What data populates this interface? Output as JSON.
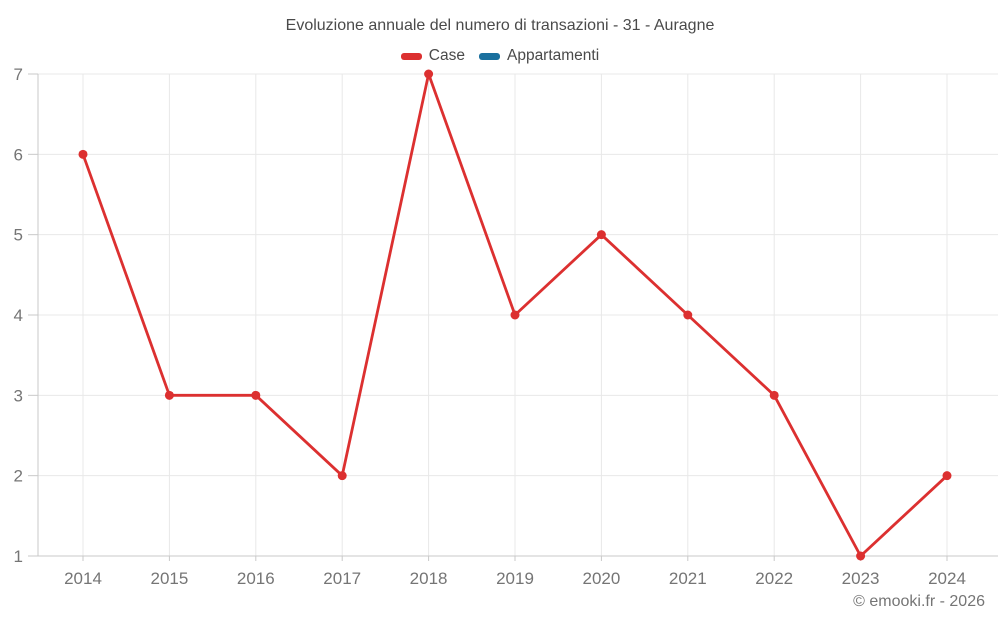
{
  "title": "Evoluzione annuale del numero di transazioni - 31 - Auragne",
  "watermark": "© emooki.fr - 2026",
  "colors": {
    "grid": "#e8e8e8",
    "axis": "#c9c9c9",
    "tick_label": "#757575",
    "heading_text": "#4a4a4a",
    "background": "#ffffff"
  },
  "chart_data": {
    "type": "line",
    "title": "Evoluzione annuale del numero di transazioni - 31 - Auragne",
    "categories": [
      "2014",
      "2015",
      "2016",
      "2017",
      "2018",
      "2019",
      "2020",
      "2021",
      "2022",
      "2023",
      "2024"
    ],
    "series": [
      {
        "name": "Case",
        "color": "#dc3030",
        "values": [
          6,
          3,
          3,
          2,
          7,
          4,
          5,
          4,
          3,
          1,
          2
        ]
      },
      {
        "name": "Appartamenti",
        "color": "#1a709e",
        "values": []
      }
    ],
    "xlabel": "",
    "ylabel": "",
    "ylim": [
      1,
      7
    ],
    "yticks": [
      1,
      2,
      3,
      4,
      5,
      6,
      7
    ],
    "grid": true,
    "legend_position": "top",
    "marker": "circle"
  }
}
